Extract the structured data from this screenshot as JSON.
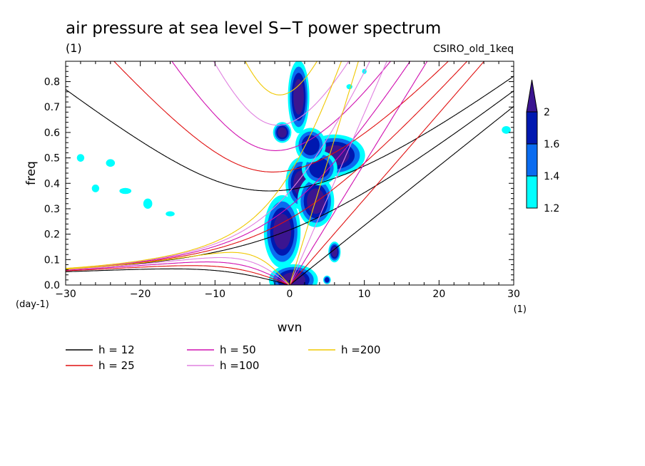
{
  "chart_data": {
    "type": "contour",
    "title": "air pressure at sea level S−T power spectrum",
    "title_units": "(1)",
    "model_label": "CSIRO_old_1keq",
    "xlabel": "wvn",
    "ylabel": "freq",
    "x_unit": "(1)",
    "y_unit": "(day-1)",
    "xlim": [
      -30,
      30
    ],
    "ylim": [
      0,
      0.88
    ],
    "x_ticks": [
      -30,
      -20,
      -10,
      0,
      10,
      20,
      30
    ],
    "x_tick_labels": [
      "−30",
      "−20",
      "−10",
      "0",
      "10",
      "20",
      "30"
    ],
    "y_ticks": [
      0.0,
      0.1,
      0.2,
      0.3,
      0.4,
      0.5,
      0.6,
      0.7,
      0.8
    ],
    "y_tick_labels": [
      "0.0",
      "0.1",
      "0.2",
      "0.3",
      "0.4",
      "0.5",
      "0.6",
      "0.7",
      "0.8"
    ],
    "colorbar": {
      "levels": [
        1.2,
        1.4,
        1.6,
        2
      ],
      "labels": [
        "1.2",
        "1.4",
        "1.6",
        "2"
      ],
      "colors": [
        "#00ffff",
        "#0a6cf0",
        "#0018b0",
        "#3b1590"
      ]
    },
    "dispersion_curves": [
      {
        "label": "h = 12",
        "h": 12,
        "color": "#000000"
      },
      {
        "label": "h = 25",
        "h": 25,
        "color": "#e01010"
      },
      {
        "label": "h = 50",
        "h": 50,
        "color": "#d010b0"
      },
      {
        "label": "h =100",
        "h": 100,
        "color": "#e080e0"
      },
      {
        "label": "h =200",
        "h": 200,
        "color": "#f0c800"
      }
    ],
    "shaded_regions": [
      {
        "k": 0.5,
        "f": 0.02,
        "rk": 1.6,
        "rf": 0.03,
        "level": 2
      },
      {
        "k": 1.2,
        "f": 0.74,
        "rk": 0.7,
        "rf": 0.07,
        "level": 2
      },
      {
        "k": -1.0,
        "f": 0.21,
        "rk": 1.2,
        "rf": 0.07,
        "level": 2
      },
      {
        "k": 1.5,
        "f": 0.4,
        "rk": 1.0,
        "rf": 0.05,
        "level": 2
      },
      {
        "k": 3.5,
        "f": 0.33,
        "rk": 1.2,
        "rf": 0.05,
        "level": 2
      },
      {
        "k": 6.0,
        "f": 0.51,
        "rk": 2.0,
        "rf": 0.04,
        "level": 2
      },
      {
        "k": 4.0,
        "f": 0.46,
        "rk": 1.4,
        "rf": 0.04,
        "level": 1.6
      },
      {
        "k": 2.8,
        "f": 0.55,
        "rk": 1.2,
        "rf": 0.04,
        "level": 1.6
      },
      {
        "k": -1.0,
        "f": 0.6,
        "rk": 0.6,
        "rf": 0.02,
        "level": 2
      },
      {
        "k": 6.0,
        "f": 0.13,
        "rk": 0.4,
        "rf": 0.02,
        "level": 2
      },
      {
        "k": 5.0,
        "f": 0.02,
        "rk": 0.3,
        "rf": 0.01,
        "level": 1.6
      },
      {
        "k": -28.0,
        "f": 0.5,
        "rk": 0.5,
        "rf": 0.015,
        "level": 1.2
      },
      {
        "k": -26.0,
        "f": 0.38,
        "rk": 0.5,
        "rf": 0.015,
        "level": 1.2
      },
      {
        "k": -24.0,
        "f": 0.48,
        "rk": 0.6,
        "rf": 0.015,
        "level": 1.2
      },
      {
        "k": -22.0,
        "f": 0.37,
        "rk": 0.8,
        "rf": 0.012,
        "level": 1.2
      },
      {
        "k": -19.0,
        "f": 0.32,
        "rk": 0.6,
        "rf": 0.02,
        "level": 1.2
      },
      {
        "k": -16.0,
        "f": 0.28,
        "rk": 0.6,
        "rf": 0.01,
        "level": 1.2
      },
      {
        "k": 29.0,
        "f": 0.61,
        "rk": 0.6,
        "rf": 0.015,
        "level": 1.2
      },
      {
        "k": 10.0,
        "f": 0.84,
        "rk": 0.3,
        "rf": 0.01,
        "level": 1.2
      },
      {
        "k": 8.0,
        "f": 0.78,
        "rk": 0.4,
        "rf": 0.01,
        "level": 1.2
      }
    ]
  }
}
